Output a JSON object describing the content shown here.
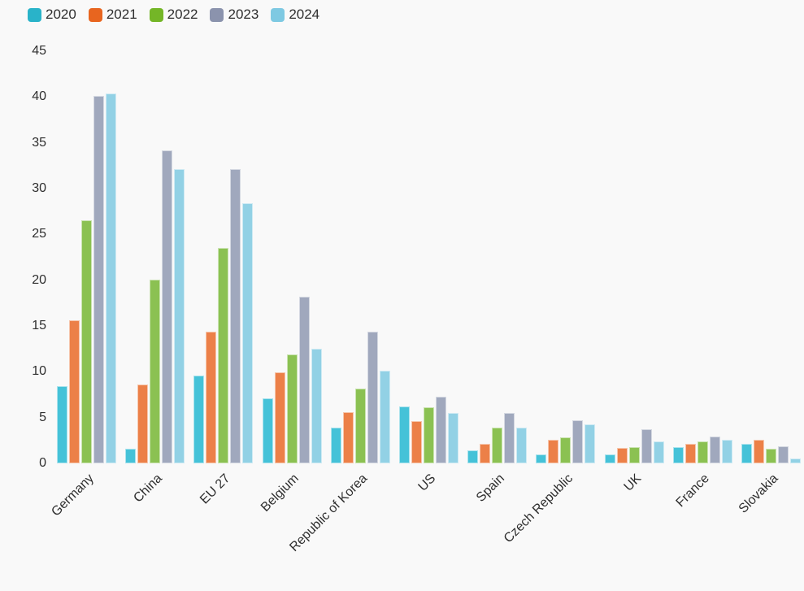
{
  "colors": {
    "background": "#f9f9f9",
    "text": "#2e2e2e"
  },
  "chart_data": {
    "type": "bar",
    "title": "",
    "xlabel": "",
    "ylabel": "",
    "ylim": [
      0,
      45
    ],
    "yticks": [
      0,
      5,
      10,
      15,
      20,
      25,
      30,
      35,
      40,
      45
    ],
    "grid": "off",
    "legend_position": "top-left",
    "categories": [
      "Germany",
      "China",
      "EU 27",
      "Belgium",
      "Republic of Korea",
      "US",
      "Spain",
      "Czech Republic",
      "UK",
      "France",
      "Slovakia"
    ],
    "series": [
      {
        "name": "2020",
        "legend_color": "#29b3c9",
        "bar_color": "#45c2d8",
        "values": [
          8.4,
          1.6,
          9.6,
          7.1,
          3.9,
          6.2,
          1.4,
          1.0,
          1.0,
          1.8,
          2.1
        ]
      },
      {
        "name": "2021",
        "legend_color": "#e8651f",
        "bar_color": "#ec8048",
        "values": [
          15.6,
          8.6,
          14.4,
          9.9,
          5.6,
          4.6,
          2.1,
          2.6,
          1.7,
          2.1,
          2.6
        ]
      },
      {
        "name": "2022",
        "legend_color": "#74b627",
        "bar_color": "#8bc152",
        "values": [
          26.5,
          20.1,
          23.5,
          11.9,
          8.2,
          6.1,
          3.9,
          2.8,
          1.8,
          2.4,
          1.6
        ]
      },
      {
        "name": "2023",
        "legend_color": "#8b93ad",
        "bar_color": "#a0a8bd",
        "values": [
          40.1,
          34.2,
          32.1,
          18.2,
          14.4,
          7.3,
          5.5,
          4.7,
          3.7,
          2.9,
          1.9
        ]
      },
      {
        "name": "2024",
        "legend_color": "#7ec9e2",
        "bar_color": "#92d1e5",
        "values": [
          40.4,
          32.1,
          28.4,
          12.5,
          10.1,
          5.5,
          3.9,
          4.3,
          2.4,
          2.6,
          0.5
        ]
      }
    ]
  }
}
